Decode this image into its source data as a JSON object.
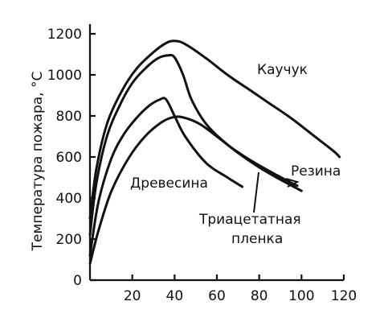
{
  "chart_data": {
    "type": "line",
    "title": "",
    "xlabel": "",
    "ylabel": "Температура пожара, °C",
    "xlim": [
      0,
      120
    ],
    "ylim": [
      0,
      1200
    ],
    "x_ticks": [
      20,
      40,
      60,
      80,
      100,
      120
    ],
    "x_tick_labels": [
      "20",
      "40",
      "60",
      "80",
      "100",
      "120"
    ],
    "y_ticks": [
      0,
      200,
      400,
      600,
      800,
      1000,
      1200
    ],
    "y_tick_labels": [
      "0",
      "200",
      "400",
      "600",
      "800",
      "1000",
      "1200"
    ],
    "grid": false,
    "series": [
      {
        "name": "Каучук",
        "x": [
          0,
          3,
          8,
          15,
          22,
          30,
          36,
          40,
          45,
          55,
          65,
          75,
          85,
          95,
          105,
          115,
          118
        ],
        "y": [
          300,
          540,
          760,
          920,
          1030,
          1110,
          1155,
          1165,
          1150,
          1080,
          1000,
          930,
          860,
          790,
          710,
          630,
          600
        ]
      },
      {
        "name": "Резина",
        "x": [
          0,
          3,
          8,
          14,
          20,
          26,
          32,
          37,
          40,
          44,
          48,
          55,
          65,
          75,
          85,
          95,
          98
        ],
        "y": [
          220,
          470,
          700,
          850,
          960,
          1030,
          1080,
          1095,
          1085,
          1000,
          880,
          760,
          660,
          590,
          530,
          475,
          460
        ]
      },
      {
        "name": "Древесина",
        "x": [
          0,
          4,
          10,
          16,
          22,
          28,
          33,
          36,
          40,
          45,
          55,
          65,
          72
        ],
        "y": [
          120,
          380,
          590,
          710,
          790,
          850,
          880,
          880,
          800,
          700,
          570,
          500,
          455
        ]
      },
      {
        "name": "Триацетатная пленка",
        "x": [
          0,
          4,
          10,
          18,
          26,
          34,
          40,
          45,
          52,
          60,
          70,
          80,
          90,
          100
        ],
        "y": [
          80,
          240,
          430,
          590,
          700,
          770,
          795,
          790,
          760,
          700,
          620,
          550,
          490,
          435
        ]
      }
    ],
    "annotations": [
      {
        "text": "Каучук",
        "series": "Каучук"
      },
      {
        "text": "Резина",
        "series": "Резина"
      },
      {
        "text": "Древесина",
        "series": "Древесина"
      },
      {
        "text": "Триацетатная",
        "series": "Триацетатная пленка"
      },
      {
        "text": "пленка",
        "series": "Триацетатная пленка"
      }
    ]
  }
}
